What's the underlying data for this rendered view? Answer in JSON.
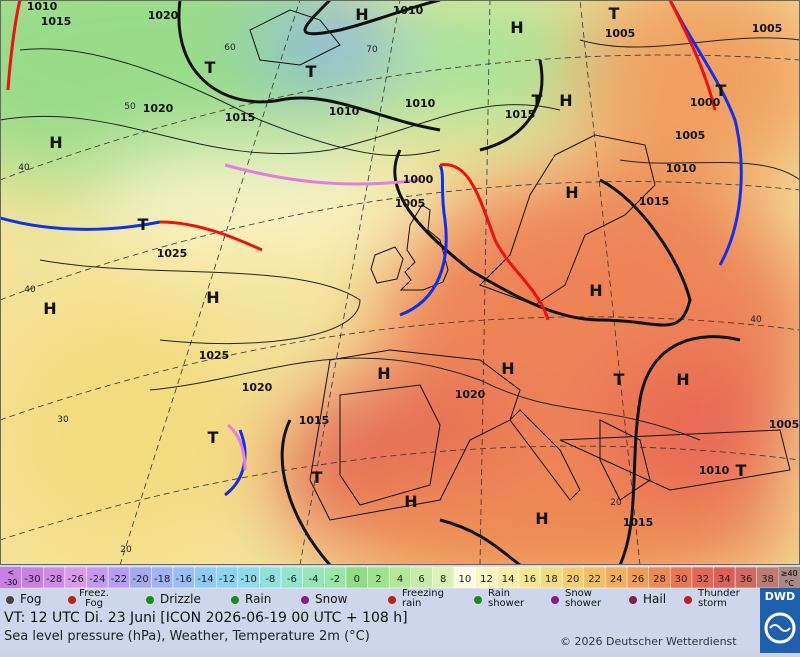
{
  "map": {
    "isobar_labels": [
      1010,
      1020,
      1010,
      1005,
      1005,
      1020,
      1015,
      1010,
      1010,
      1015,
      1000,
      1005,
      1010,
      1015,
      1000,
      1005,
      1025,
      1025,
      1020,
      1020,
      1015,
      1010,
      1005,
      1015,
      1015
    ],
    "centers": [
      "H",
      "T",
      "H",
      "T",
      "T",
      "H",
      "T",
      "H",
      "T",
      "H",
      "H",
      "H",
      "H",
      "H",
      "T",
      "H",
      "T",
      "T",
      "H",
      "H",
      "T",
      "T",
      "H"
    ],
    "grid_labels": [
      60,
      50,
      40,
      40,
      30,
      20,
      70,
      40,
      20
    ]
  },
  "temperature_legend": [
    {
      "label": "-30",
      "color": "#c77fe0"
    },
    {
      "label": "-28",
      "color": "#d08ae6"
    },
    {
      "label": "-26",
      "color": "#d99aec"
    },
    {
      "label": "-24",
      "color": "#c49af0"
    },
    {
      "label": "-22",
      "color": "#b59ef2"
    },
    {
      "label": "-20",
      "color": "#a7a8f4"
    },
    {
      "label": "-18",
      "color": "#9fb3f5"
    },
    {
      "label": "-16",
      "color": "#97bff6"
    },
    {
      "label": "-14",
      "color": "#8fcaf6"
    },
    {
      "label": "-12",
      "color": "#8ad3f2"
    },
    {
      "label": "-10",
      "color": "#8cdaea"
    },
    {
      "label": "-8",
      "color": "#90e0dc"
    },
    {
      "label": "-6",
      "color": "#92e4cc"
    },
    {
      "label": "-4",
      "color": "#96e6ba"
    },
    {
      "label": "-2",
      "color": "#9ae6a6"
    },
    {
      "label": "0",
      "color": "#8fdc84"
    },
    {
      "label": "2",
      "color": "#9ee28c"
    },
    {
      "label": "4",
      "color": "#b2e898"
    },
    {
      "label": "6",
      "color": "#c6eda6"
    },
    {
      "label": "8",
      "color": "#daf2b4"
    },
    {
      "label": "10",
      "color": "#fbfbe0"
    },
    {
      "label": "12",
      "color": "#f9f6c4"
    },
    {
      "label": "14",
      "color": "#f7efa8"
    },
    {
      "label": "16",
      "color": "#f5e790"
    },
    {
      "label": "18",
      "color": "#f4dc7c"
    },
    {
      "label": "20",
      "color": "#f3ce6a"
    },
    {
      "label": "22",
      "color": "#f2bf60"
    },
    {
      "label": "24",
      "color": "#f2ae58"
    },
    {
      "label": "26",
      "color": "#f09c54"
    },
    {
      "label": "28",
      "color": "#ee8a52"
    },
    {
      "label": "30",
      "color": "#ea7652"
    },
    {
      "label": "32",
      "color": "#e46654"
    },
    {
      "label": "34",
      "color": "#dc6058"
    },
    {
      "label": "36",
      "color": "#cf6a62"
    },
    {
      "label": "38",
      "color": "#bf7a72"
    }
  ],
  "temperature_low": [
    "<",
    "-30"
  ],
  "temperature_high": [
    "≥40",
    "°C"
  ],
  "weather_legend": [
    [
      "Fog"
    ],
    [
      "Freez.",
      "Fog"
    ],
    [
      "Drizzle"
    ],
    [
      "Rain"
    ],
    [
      "Snow"
    ],
    [
      "Freezing",
      "rain"
    ],
    [
      "Rain",
      "shower"
    ],
    [
      "Snow",
      "shower"
    ],
    [
      "Hail"
    ],
    [
      "Thunder",
      "storm"
    ]
  ],
  "footer": {
    "valid_time": "VT: 12 UTC Di.  23 Juni [ICON 2026-06-19  00 UTC + 108 h]",
    "description": "Sea level pressure (hPa), Weather, Temperature 2m (°C)",
    "copyright": "© 2026 Deutscher Wetterdienst",
    "logo": "DWD"
  }
}
